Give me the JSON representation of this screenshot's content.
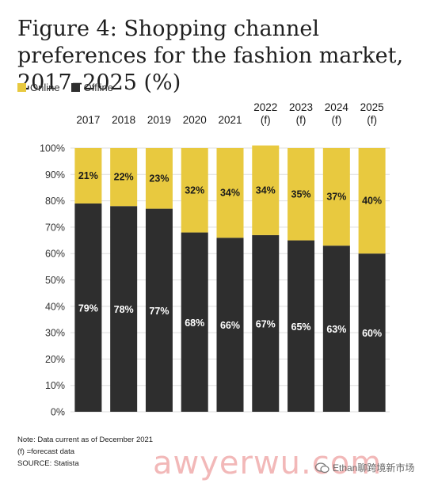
{
  "title": "Figure 4: Shopping channel preferences for the fashion market, 2017–2025 (%)",
  "legend": {
    "online_label": "Online",
    "offline_label": "Offline"
  },
  "notes": {
    "line1": "Note: Data current as of December 2021",
    "line2": "(f) =forecast data",
    "line3": "SOURCE: Statista"
  },
  "watermark": {
    "text": "awyerwu.com",
    "brand": "Ethan聊跨境新市场",
    "icon": "chat-bubble-icon"
  },
  "colors": {
    "online": "#e8c93f",
    "offline": "#2e2e2e",
    "grid": "#dedede",
    "axis_text": "#333333"
  },
  "chart_data": {
    "type": "bar",
    "stacked": true,
    "title": "Figure 4: Shopping channel preferences for the fashion market, 2017–2025 (%)",
    "categories": [
      [
        "2017"
      ],
      [
        "2018"
      ],
      [
        "2019"
      ],
      [
        "2020"
      ],
      [
        "2021"
      ],
      [
        "2022",
        "(f)"
      ],
      [
        "2023",
        "(f)"
      ],
      [
        "2024",
        "(f)"
      ],
      [
        "2025",
        "(f)"
      ]
    ],
    "series": [
      {
        "name": "Offline",
        "values": [
          79,
          78,
          77,
          68,
          66,
          67,
          65,
          63,
          60
        ],
        "labels": [
          "79%",
          "78%",
          "77%",
          "68%",
          "66%",
          "67%",
          "65%",
          "63%",
          "60%"
        ]
      },
      {
        "name": "Online",
        "values": [
          21,
          22,
          23,
          32,
          34,
          34,
          35,
          37,
          40
        ],
        "labels": [
          "21%",
          "22%",
          "23%",
          "32%",
          "34%",
          "34%",
          "35%",
          "37%",
          "40%"
        ]
      }
    ],
    "yticks": [
      "0%",
      "10%",
      "20%",
      "30%",
      "40%",
      "50%",
      "60%",
      "70%",
      "80%",
      "90%",
      "100%"
    ],
    "ylim": [
      0,
      100
    ],
    "grid": true,
    "legend_position": "top-left",
    "category_labels_position": "top"
  }
}
